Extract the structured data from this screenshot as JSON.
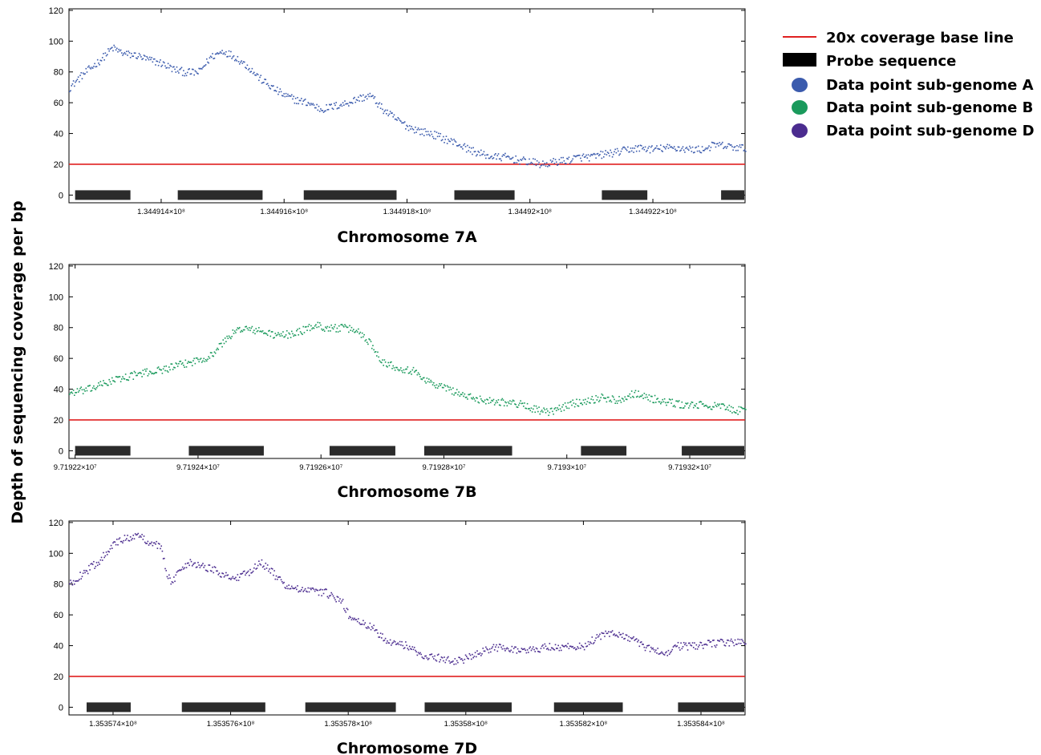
{
  "y_axis_label": "Depth of sequencing coverage per bp",
  "legend": [
    {
      "kind": "line",
      "label": "20x coverage base line",
      "color": "#e02020"
    },
    {
      "kind": "bar",
      "label": "Probe sequence",
      "color": "#000000"
    },
    {
      "kind": "dot",
      "label": "Data point sub-genome A",
      "color": "#3b5bad"
    },
    {
      "kind": "dot",
      "label": "Data point sub-genome B",
      "color": "#1a9a5c"
    },
    {
      "kind": "dot",
      "label": "Data point sub-genome D",
      "color": "#4b2c8f"
    }
  ],
  "chart_data": [
    {
      "type": "scatter",
      "title": "Chromosome 7A",
      "series_label": "Data point sub-genome A",
      "color": "#3b5bad",
      "xlim": [
        134491250,
        134492350
      ],
      "ylim": [
        -5,
        121
      ],
      "yticks": [
        0,
        20,
        40,
        60,
        80,
        100,
        120
      ],
      "xticks": [
        {
          "value": 134491400,
          "label": "1.344914×10⁸"
        },
        {
          "value": 134491600,
          "label": "1.344916×10⁸"
        },
        {
          "value": 134491800,
          "label": "1.344918×10⁸"
        },
        {
          "value": 134492000,
          "label": "1.34492×10⁸"
        },
        {
          "value": 134492200,
          "label": "1.344922×10⁸"
        }
      ],
      "baseline": 20,
      "probes": [
        [
          134491260,
          134491350
        ],
        [
          134491427,
          134491565
        ],
        [
          134491632,
          134491783
        ],
        [
          134491877,
          134491975
        ],
        [
          134492117,
          134492191
        ],
        [
          134492311,
          134492350
        ]
      ],
      "profile": [
        [
          134491250,
          70
        ],
        [
          134491270,
          78
        ],
        [
          134491300,
          88
        ],
        [
          134491320,
          96
        ],
        [
          134491340,
          92
        ],
        [
          134491360,
          91
        ],
        [
          134491380,
          88
        ],
        [
          134491400,
          86
        ],
        [
          134491420,
          82
        ],
        [
          134491440,
          80
        ],
        [
          134491460,
          80
        ],
        [
          134491480,
          90
        ],
        [
          134491500,
          94
        ],
        [
          134491520,
          90
        ],
        [
          134491540,
          84
        ],
        [
          134491560,
          76
        ],
        [
          134491580,
          70
        ],
        [
          134491600,
          65
        ],
        [
          134491620,
          62
        ],
        [
          134491640,
          60
        ],
        [
          134491660,
          56
        ],
        [
          134491680,
          58
        ],
        [
          134491700,
          60
        ],
        [
          134491720,
          63
        ],
        [
          134491740,
          65
        ],
        [
          134491760,
          56
        ],
        [
          134491780,
          50
        ],
        [
          134491800,
          45
        ],
        [
          134491820,
          42
        ],
        [
          134491840,
          40
        ],
        [
          134491860,
          37
        ],
        [
          134491880,
          34
        ],
        [
          134491900,
          30
        ],
        [
          134491920,
          27
        ],
        [
          134491940,
          25
        ],
        [
          134491960,
          25
        ],
        [
          134491980,
          23
        ],
        [
          134492000,
          22
        ],
        [
          134492020,
          20
        ],
        [
          134492040,
          22
        ],
        [
          134492060,
          23
        ],
        [
          134492080,
          25
        ],
        [
          134492100,
          25
        ],
        [
          134492120,
          27
        ],
        [
          134492140,
          28
        ],
        [
          134492160,
          30
        ],
        [
          134492180,
          31
        ],
        [
          134492200,
          30
        ],
        [
          134492220,
          31
        ],
        [
          134492240,
          31
        ],
        [
          134492260,
          30
        ],
        [
          134492280,
          30
        ],
        [
          134492300,
          33
        ],
        [
          134492320,
          32
        ],
        [
          134492340,
          31
        ],
        [
          134492350,
          31
        ]
      ]
    },
    {
      "type": "scatter",
      "title": "Chromosome 7B",
      "series_label": "Data point sub-genome B",
      "color": "#1a9a5c",
      "xlim": [
        97192190,
        97193290
      ],
      "ylim": [
        -5,
        121
      ],
      "yticks": [
        0,
        20,
        40,
        60,
        80,
        100,
        120
      ],
      "xticks": [
        {
          "value": 97192200,
          "label": "9.71922×10⁷"
        },
        {
          "value": 97192400,
          "label": "9.71924×10⁷"
        },
        {
          "value": 97192600,
          "label": "9.71926×10⁷"
        },
        {
          "value": 97192800,
          "label": "9.71928×10⁷"
        },
        {
          "value": 97193000,
          "label": "9.7193×10⁷"
        },
        {
          "value": 97193200,
          "label": "9.71932×10⁷"
        }
      ],
      "baseline": 20,
      "probes": [
        [
          97192200,
          97192290
        ],
        [
          97192385,
          97192507
        ],
        [
          97192614,
          97192721
        ],
        [
          97192768,
          97192911
        ],
        [
          97193023,
          97193097
        ],
        [
          97193187,
          97193290
        ]
      ],
      "profile": [
        [
          97192190,
          38
        ],
        [
          97192220,
          40
        ],
        [
          97192260,
          46
        ],
        [
          97192300,
          50
        ],
        [
          97192340,
          53
        ],
        [
          97192380,
          57
        ],
        [
          97192420,
          62
        ],
        [
          97192450,
          75
        ],
        [
          97192470,
          80
        ],
        [
          97192500,
          78
        ],
        [
          97192530,
          75
        ],
        [
          97192560,
          77
        ],
        [
          97192590,
          82
        ],
        [
          97192610,
          80
        ],
        [
          97192640,
          80
        ],
        [
          97192660,
          78
        ],
        [
          97192680,
          70
        ],
        [
          97192700,
          58
        ],
        [
          97192720,
          55
        ],
        [
          97192750,
          52
        ],
        [
          97192780,
          44
        ],
        [
          97192810,
          40
        ],
        [
          97192840,
          35
        ],
        [
          97192870,
          33
        ],
        [
          97192900,
          32
        ],
        [
          97192930,
          30
        ],
        [
          97192950,
          27
        ],
        [
          97192970,
          25
        ],
        [
          97193000,
          30
        ],
        [
          97193030,
          33
        ],
        [
          97193060,
          35
        ],
        [
          97193080,
          33
        ],
        [
          97193110,
          38
        ],
        [
          97193130,
          35
        ],
        [
          97193160,
          32
        ],
        [
          97193190,
          30
        ],
        [
          97193220,
          30
        ],
        [
          97193250,
          29
        ],
        [
          97193270,
          27
        ],
        [
          97193290,
          26
        ]
      ]
    },
    {
      "type": "scatter",
      "title": "Chromosome 7D",
      "series_label": "Data point sub-genome D",
      "color": "#4b2c8f",
      "xlim": [
        135357325,
        135358475
      ],
      "ylim": [
        -5,
        121
      ],
      "yticks": [
        0,
        20,
        40,
        60,
        80,
        100,
        120
      ],
      "xticks": [
        {
          "value": 135357400,
          "label": "1.353574×10⁸"
        },
        {
          "value": 135357600,
          "label": "1.353576×10⁸"
        },
        {
          "value": 135357800,
          "label": "1.353578×10⁸"
        },
        {
          "value": 135358000,
          "label": "1.35358×10⁸"
        },
        {
          "value": 135358200,
          "label": "1.353582×10⁸"
        },
        {
          "value": 135358400,
          "label": "1.353584×10⁸"
        }
      ],
      "baseline": 20,
      "probes": [
        [
          135357355,
          135357430
        ],
        [
          135357517,
          135357659
        ],
        [
          135357727,
          135357881
        ],
        [
          135357930,
          135358078
        ],
        [
          135358150,
          135358267
        ],
        [
          135358361,
          135358475
        ]
      ],
      "profile": [
        [
          135357325,
          80
        ],
        [
          135357350,
          88
        ],
        [
          135357375,
          95
        ],
        [
          135357395,
          105
        ],
        [
          135357420,
          110
        ],
        [
          135357440,
          112
        ],
        [
          135357460,
          108
        ],
        [
          135357480,
          105
        ],
        [
          135357490,
          88
        ],
        [
          135357500,
          80
        ],
        [
          135357510,
          90
        ],
        [
          135357530,
          95
        ],
        [
          135357550,
          92
        ],
        [
          135357570,
          90
        ],
        [
          135357590,
          86
        ],
        [
          135357610,
          84
        ],
        [
          135357630,
          88
        ],
        [
          135357650,
          95
        ],
        [
          135357670,
          88
        ],
        [
          135357690,
          80
        ],
        [
          135357710,
          77
        ],
        [
          135357730,
          76
        ],
        [
          135357760,
          75
        ],
        [
          135357790,
          68
        ],
        [
          135357800,
          60
        ],
        [
          135357820,
          55
        ],
        [
          135357840,
          52
        ],
        [
          135357860,
          45
        ],
        [
          135357880,
          42
        ],
        [
          135357900,
          40
        ],
        [
          135357920,
          35
        ],
        [
          135357940,
          33
        ],
        [
          135357960,
          32
        ],
        [
          135357980,
          30
        ],
        [
          135358000,
          32
        ],
        [
          135358020,
          35
        ],
        [
          135358040,
          38
        ],
        [
          135358060,
          40
        ],
        [
          135358080,
          38
        ],
        [
          135358100,
          37
        ],
        [
          135358120,
          38
        ],
        [
          135358140,
          40
        ],
        [
          135358160,
          39
        ],
        [
          135358180,
          40
        ],
        [
          135358200,
          40
        ],
        [
          135358220,
          45
        ],
        [
          135358240,
          48
        ],
        [
          135358260,
          48
        ],
        [
          135358280,
          45
        ],
        [
          135358300,
          40
        ],
        [
          135358320,
          37
        ],
        [
          135358340,
          36
        ],
        [
          135358360,
          40
        ],
        [
          135358380,
          40
        ],
        [
          135358400,
          41
        ],
        [
          135358430,
          42
        ],
        [
          135358460,
          43
        ],
        [
          135358475,
          42
        ]
      ]
    }
  ]
}
